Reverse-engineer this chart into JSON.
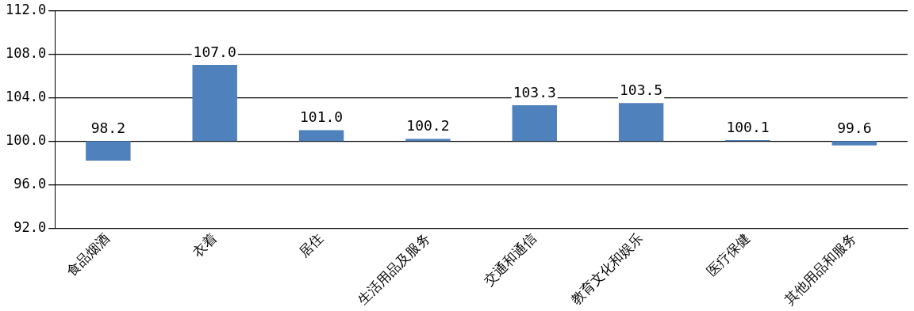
{
  "chart_data": {
    "type": "bar",
    "categories": [
      "食品烟酒",
      "衣着",
      "居住",
      "生活用品及服务",
      "交通和通信",
      "教育文化和娱乐",
      "医疗保健",
      "其他用品和服务"
    ],
    "base": [
      100,
      100,
      100,
      100,
      100,
      100,
      100,
      100
    ],
    "values": [
      -1.8,
      7.0,
      1.0,
      0.2,
      3.3,
      3.5,
      0.1,
      -0.4
    ],
    "value_labels": [
      "98.2",
      "107.0",
      "101.0",
      "100.2",
      "103.3",
      "103.5",
      "100.1",
      "99.6"
    ],
    "color": "#4f81bd",
    "ylim": [
      92,
      112
    ],
    "yticks": [
      {
        "value": 92,
        "label": "92.0"
      },
      {
        "value": 96,
        "label": "96.0"
      },
      {
        "value": 100,
        "label": "100.0"
      },
      {
        "value": 104,
        "label": "104.0"
      },
      {
        "value": 108,
        "label": "108.0"
      },
      {
        "value": 112,
        "label": "112.0"
      }
    ],
    "grid": "y"
  }
}
